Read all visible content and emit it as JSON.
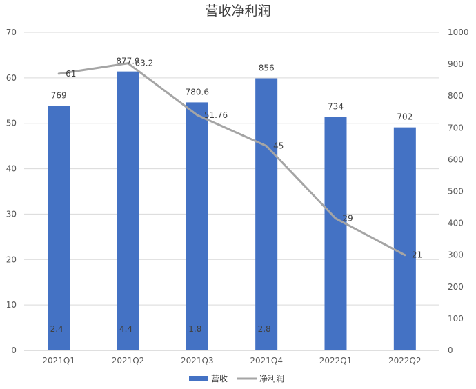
{
  "chart_data": {
    "type": "bar",
    "title": "营收净利润",
    "categories": [
      "2021Q1",
      "2021Q2",
      "2021Q3",
      "2021Q4",
      "2022Q1",
      "2022Q2"
    ],
    "series": [
      {
        "name": "营收",
        "type": "bar",
        "axis": "left",
        "values": [
          53.8,
          61.4,
          54.6,
          59.9,
          51.4,
          49.1
        ],
        "labels": [
          "769",
          "877.9",
          "780.6",
          "856",
          "734",
          "702"
        ],
        "inner_labels": [
          "2.4",
          "4.4",
          "1.8",
          "2.8",
          "",
          ""
        ],
        "color": "#4472C4"
      },
      {
        "name": "净利润",
        "type": "line",
        "axis": "right",
        "values": [
          870,
          903,
          740,
          643,
          415,
          300
        ],
        "labels": [
          "61",
          "63.2",
          "51.76",
          "45",
          "29",
          "21"
        ],
        "color": "#A5A5A5"
      }
    ],
    "y_left": {
      "ticks": [
        "0",
        "10",
        "20",
        "30",
        "40",
        "50",
        "60",
        "70"
      ],
      "ylim": [
        0,
        70
      ]
    },
    "y_right": {
      "ticks": [
        "0",
        "100",
        "200",
        "300",
        "400",
        "500",
        "600",
        "700",
        "800",
        "900",
        "1000"
      ],
      "ylim": [
        0,
        1000
      ]
    },
    "grid": true,
    "legend_position": "bottom"
  }
}
